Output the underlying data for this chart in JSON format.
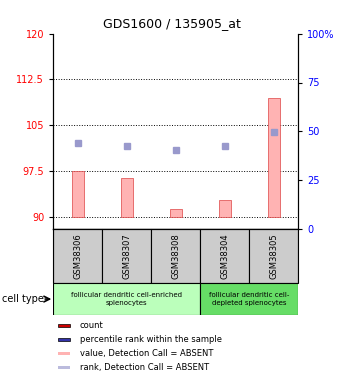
{
  "title": "GDS1600 / 135905_at",
  "samples": [
    "GSM38306",
    "GSM38307",
    "GSM38308",
    "GSM38304",
    "GSM38305"
  ],
  "bar_values": [
    97.5,
    96.3,
    91.2,
    92.8,
    109.5
  ],
  "bar_base": 90,
  "rank_dots_left": [
    102.0,
    101.5,
    101.0,
    101.5,
    103.8
  ],
  "ylim_left": [
    88,
    120
  ],
  "ylim_right": [
    0,
    100
  ],
  "yticks_left": [
    90,
    97.5,
    105,
    112.5,
    120
  ],
  "yticks_right": [
    0,
    25,
    50,
    75,
    100
  ],
  "bar_color": "#ffb3b3",
  "rank_dot_color": "#9999cc",
  "bar_border_color": "#dd4444",
  "group1_label": "follicular dendritic cell-enriched\nsplenocytes",
  "group2_label": "follicular dendritic cell-\ndepleted splenocytes",
  "group1_samples": [
    0,
    1,
    2
  ],
  "group2_samples": [
    3,
    4
  ],
  "group1_color": "#bbffbb",
  "group2_color": "#66dd66",
  "sample_box_color": "#cccccc",
  "cell_type_label": "cell type",
  "legend_items": [
    {
      "label": "count",
      "color": "#cc0000"
    },
    {
      "label": "percentile rank within the sample",
      "color": "#3333aa"
    },
    {
      "label": "value, Detection Call = ABSENT",
      "color": "#ffb3b3"
    },
    {
      "label": "rank, Detection Call = ABSENT",
      "color": "#bbbbdd"
    }
  ]
}
